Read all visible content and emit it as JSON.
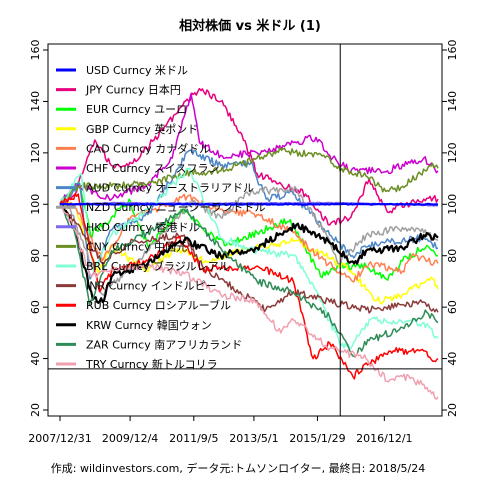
{
  "chart_data": {
    "type": "line",
    "title": "相対株価 vs 米ドル (1)",
    "caption": "作成: wildinvestors.com, データ元:トムソンロイター, 最終日: 2018/5/24",
    "xlabel": "",
    "ylabel": "",
    "ylim": [
      20,
      160
    ],
    "yticks": [
      20,
      40,
      60,
      80,
      100,
      120,
      140,
      160
    ],
    "xlim": [
      "2007-12-31",
      "2018-05-24"
    ],
    "xticks": [
      {
        "date": "2007-12-31",
        "label": "2007/12/31"
      },
      {
        "date": "2009-12-04",
        "label": "2009/12/4"
      },
      {
        "date": "2011-09-05",
        "label": "2011/9/5"
      },
      {
        "date": "2013-05-01",
        "label": "2013/5/1"
      },
      {
        "date": "2015-01-29",
        "label": "2015/1/29"
      },
      {
        "date": "2016-12-01",
        "label": "2016/12/1"
      }
    ],
    "reference_lines": {
      "vertical_date": "2015-09-15",
      "horizontal_value": 36
    },
    "grid": false,
    "legend_position": "top-left",
    "series": [
      {
        "name": "USD Curncy 米ドル",
        "color": "#0000ff",
        "x": [
          "2007-12-31",
          "2018-05-24"
        ],
        "values": [
          100,
          100
        ]
      },
      {
        "name": "JPY Curncy 日本円",
        "color": "#e6007e",
        "x": [
          "2007-12-31",
          "2008-06-01",
          "2008-12-15",
          "2009-06-01",
          "2010-01-01",
          "2010-08-01",
          "2011-03-01",
          "2011-10-31",
          "2012-06-01",
          "2013-01-01",
          "2013-06-01",
          "2014-01-01",
          "2014-10-01",
          "2015-06-01",
          "2016-01-01",
          "2016-07-01",
          "2017-01-01",
          "2017-07-01",
          "2018-01-01",
          "2018-05-24"
        ],
        "values": [
          100,
          104,
          125,
          115,
          116,
          125,
          135,
          145,
          140,
          127,
          112,
          108,
          104,
          92,
          95,
          110,
          97,
          100,
          102,
          102
        ]
      },
      {
        "name": "EUR Curncy ユーロ",
        "color": "#00ff00",
        "x": [
          "2007-12-31",
          "2008-07-15",
          "2008-11-01",
          "2009-06-01",
          "2009-11-25",
          "2010-06-08",
          "2011-04-29",
          "2012-07-24",
          "2013-06-01",
          "2014-05-01",
          "2015-03-01",
          "2015-09-01",
          "2016-06-01",
          "2016-12-20",
          "2017-06-01",
          "2018-02-01",
          "2018-05-24"
        ],
        "values": [
          100,
          108,
          88,
          95,
          102,
          83,
          98,
          84,
          89,
          94,
          72,
          76,
          76,
          71,
          78,
          84,
          80
        ]
      },
      {
        "name": "GBP Curncy 英ポンド",
        "color": "#ffff00",
        "x": [
          "2007-12-31",
          "2008-06-01",
          "2009-01-20",
          "2009-06-01",
          "2010-05-01",
          "2011-04-01",
          "2012-01-01",
          "2013-01-01",
          "2014-07-01",
          "2015-06-01",
          "2016-01-01",
          "2016-07-01",
          "2016-10-15",
          "2017-06-01",
          "2018-04-01",
          "2018-05-24"
        ],
        "values": [
          100,
          99,
          73,
          84,
          74,
          83,
          78,
          82,
          86,
          79,
          74,
          66,
          62,
          65,
          71,
          67
        ]
      },
      {
        "name": "CAD Curncy カナダドル",
        "color": "#ff7f50",
        "x": [
          "2007-12-31",
          "2008-06-01",
          "2009-03-01",
          "2009-12-01",
          "2011-07-01",
          "2012-06-01",
          "2013-06-01",
          "2014-06-01",
          "2015-03-01",
          "2016-01-15",
          "2016-07-01",
          "2017-06-01",
          "2017-09-01",
          "2018-05-24"
        ],
        "values": [
          100,
          99,
          78,
          94,
          103,
          98,
          96,
          89,
          79,
          70,
          77,
          74,
          80,
          77
        ]
      },
      {
        "name": "CHF Curncy スイスフラン",
        "color": "#cc00cc",
        "x": [
          "2007-12-31",
          "2008-06-01",
          "2008-12-01",
          "2009-06-01",
          "2010-06-01",
          "2011-02-01",
          "2011-08-09",
          "2011-11-01",
          "2012-06-01",
          "2013-06-01",
          "2014-06-01",
          "2015-01-15",
          "2015-06-01",
          "2016-01-01",
          "2017-01-01",
          "2018-01-01",
          "2018-05-24"
        ],
        "values": [
          100,
          108,
          105,
          102,
          108,
          118,
          143,
          124,
          119,
          120,
          124,
          126,
          119,
          113,
          113,
          118,
          113
        ]
      },
      {
        "name": "AUD Curncy オーストラリアドル",
        "color": "#4d86c6",
        "x": [
          "2007-12-31",
          "2008-07-15",
          "2008-10-27",
          "2009-06-01",
          "2010-06-01",
          "2011-07-27",
          "2012-06-01",
          "2013-04-01",
          "2013-09-01",
          "2014-06-01",
          "2015-06-01",
          "2016-01-15",
          "2016-07-01",
          "2017-06-01",
          "2018-01-01",
          "2018-05-24"
        ],
        "values": [
          100,
          108,
          71,
          90,
          96,
          121,
          115,
          116,
          102,
          104,
          88,
          80,
          84,
          86,
          87,
          83
        ]
      },
      {
        "name": "NZD Curncy ニュージーランドドル",
        "color": "#a0a0a0",
        "x": [
          "2007-12-31",
          "2008-03-01",
          "2009-03-01",
          "2010-06-01",
          "2011-08-01",
          "2012-06-01",
          "2013-04-01",
          "2014-07-01",
          "2015-06-01",
          "2015-08-24",
          "2016-06-01",
          "2017-06-01",
          "2018-01-01",
          "2018-05-24"
        ],
        "values": [
          100,
          102,
          65,
          82,
          101,
          95,
          105,
          106,
          86,
          77,
          88,
          91,
          89,
          86
        ]
      },
      {
        "name": "HKD Curncy 香港ドル",
        "color": "#7b68ee",
        "x": [
          "2007-12-31",
          "2008-06-01",
          "2009-06-01",
          "2011-06-01",
          "2013-06-01",
          "2015-06-01",
          "2016-06-01",
          "2017-06-01",
          "2018-05-24"
        ],
        "values": [
          100,
          100.2,
          100.6,
          100.4,
          100.5,
          100.6,
          100.4,
          99.9,
          99.4
        ]
      },
      {
        "name": "CNY Curncy 中国元",
        "color": "#6b8e23",
        "x": [
          "2007-12-31",
          "2008-07-01",
          "2009-06-01",
          "2010-06-01",
          "2011-06-01",
          "2012-06-01",
          "2013-06-01",
          "2014-02-01",
          "2015-06-01",
          "2015-08-15",
          "2016-06-01",
          "2016-12-15",
          "2017-06-01",
          "2018-03-01",
          "2018-05-24"
        ],
        "values": [
          100,
          107,
          107,
          108,
          112,
          113,
          118,
          121,
          118,
          114,
          111,
          105,
          107,
          115,
          114
        ]
      },
      {
        "name": "BRL Curncy ブラジルレアル",
        "color": "#7fffd4",
        "x": [
          "2007-12-31",
          "2008-07-31",
          "2008-12-01",
          "2009-06-01",
          "2010-06-01",
          "2011-07-25",
          "2012-06-01",
          "2013-06-01",
          "2014-06-01",
          "2015-01-01",
          "2015-09-24",
          "2016-01-01",
          "2016-07-01",
          "2017-06-01",
          "2018-01-01",
          "2018-05-24"
        ],
        "values": [
          100,
          112,
          74,
          88,
          98,
          114,
          87,
          82,
          80,
          67,
          45,
          44,
          55,
          54,
          54,
          48
        ]
      },
      {
        "name": "INR Curncy インドルピー",
        "color": "#8b3a3a",
        "x": [
          "2007-12-31",
          "2008-06-01",
          "2009-03-01",
          "2010-01-01",
          "2011-06-01",
          "2011-12-15",
          "2012-06-01",
          "2013-08-28",
          "2014-06-01",
          "2015-06-01",
          "2016-06-01",
          "2017-06-01",
          "2018-01-01",
          "2018-05-24"
        ],
        "values": [
          100,
          93,
          77,
          86,
          88,
          75,
          71,
          59,
          66,
          62,
          59,
          61,
          62,
          58
        ]
      },
      {
        "name": "RUB Curncy ロシアルーブル",
        "color": "#ff0000",
        "x": [
          "2007-12-31",
          "2008-07-01",
          "2009-02-01",
          "2009-06-01",
          "2010-06-01",
          "2011-04-01",
          "2011-12-01",
          "2012-06-01",
          "2013-06-01",
          "2014-06-01",
          "2014-12-16",
          "2015-06-01",
          "2016-01-20",
          "2016-07-01",
          "2017-03-01",
          "2018-01-01",
          "2018-04-15",
          "2018-05-24"
        ],
        "values": [
          100,
          104,
          66,
          74,
          78,
          87,
          75,
          75,
          76,
          70,
          40,
          46,
          33,
          38,
          43,
          43,
          39,
          40
        ]
      },
      {
        "name": "KRW Curncy 韓国ウォン",
        "color": "#000000",
        "x": [
          "2007-12-31",
          "2008-06-01",
          "2008-11-24",
          "2009-03-03",
          "2009-06-01",
          "2010-06-01",
          "2011-06-01",
          "2012-06-01",
          "2013-06-01",
          "2014-07-01",
          "2015-06-01",
          "2016-02-01",
          "2016-06-01",
          "2017-06-01",
          "2018-01-01",
          "2018-05-24"
        ],
        "values": [
          100,
          90,
          63,
          62,
          72,
          77,
          86,
          80,
          83,
          92,
          85,
          77,
          82,
          83,
          88,
          87
        ]
      },
      {
        "name": "ZAR Curncy 南アフリカランド",
        "color": "#2e8b57",
        "x": [
          "2007-12-31",
          "2008-06-01",
          "2008-10-22",
          "2009-06-01",
          "2010-06-01",
          "2011-06-01",
          "2012-06-01",
          "2013-06-01",
          "2014-06-01",
          "2015-06-01",
          "2016-01-20",
          "2016-07-01",
          "2017-06-01",
          "2018-02-01",
          "2018-05-24"
        ],
        "values": [
          100,
          88,
          61,
          82,
          89,
          98,
          83,
          70,
          66,
          56,
          41,
          47,
          52,
          58,
          54
        ]
      },
      {
        "name": "TRY Curncy 新トルコリラ",
        "color": "#f0a0b0",
        "x": [
          "2007-12-31",
          "2008-06-01",
          "2008-11-01",
          "2009-06-01",
          "2010-06-01",
          "2011-06-01",
          "2012-06-01",
          "2013-06-01",
          "2014-01-26",
          "2014-06-01",
          "2015-06-01",
          "2016-06-01",
          "2017-01-11",
          "2017-06-01",
          "2018-01-01",
          "2018-05-24"
        ],
        "values": [
          100,
          90,
          72,
          75,
          76,
          73,
          65,
          62,
          50,
          55,
          44,
          40,
          31,
          33,
          30,
          25
        ]
      }
    ]
  }
}
